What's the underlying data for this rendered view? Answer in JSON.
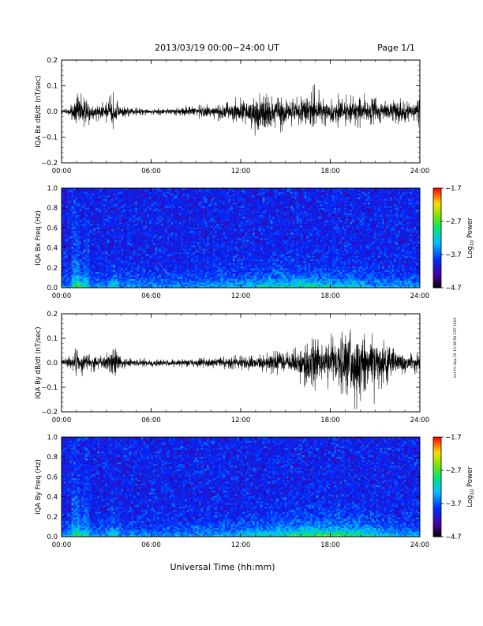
{
  "header": {
    "date_range": "2013/03/19  00:00−24:00 UT",
    "page": "Page 1/1"
  },
  "xaxis": {
    "label": "Universal Time (hh:mm)",
    "ticks": [
      "00:00",
      "06:00",
      "12:00",
      "18:00",
      "24:00"
    ],
    "range_hours": [
      0,
      24
    ]
  },
  "side_note": "mrt Fri Sep 20 13:38:56 CST 2019",
  "chart_data": [
    {
      "type": "line",
      "ylabel": "IQA Bx dB/dt (nT/sec)",
      "ylim": [
        -0.2,
        0.2
      ],
      "yticks": [
        "0.2",
        "0.1",
        "0.0",
        "−0.1",
        "−0.2"
      ],
      "x_unit": "hours UT",
      "envelope": {
        "x": [
          0,
          0.5,
          0.8,
          1.0,
          1.2,
          1.5,
          2,
          2.5,
          3,
          3.5,
          4,
          5,
          6,
          7,
          8,
          9,
          10,
          11,
          11.5,
          12,
          12.5,
          13,
          13.5,
          14,
          14.5,
          15,
          15.5,
          16,
          16.5,
          17,
          17.5,
          18,
          18.5,
          19,
          19.5,
          20,
          20.5,
          21,
          21.5,
          22,
          22.5,
          23,
          23.5,
          23.8,
          24
        ],
        "max": [
          0.01,
          0.015,
          0.05,
          0.07,
          0.11,
          0.06,
          0.05,
          0.035,
          0.045,
          0.08,
          0.03,
          0.02,
          0.015,
          0.015,
          0.02,
          0.03,
          0.03,
          0.04,
          0.05,
          0.07,
          0.05,
          0.08,
          0.07,
          0.06,
          0.06,
          0.05,
          0.06,
          0.06,
          0.075,
          0.13,
          0.06,
          0.05,
          0.07,
          0.08,
          0.06,
          0.09,
          0.06,
          0.07,
          0.06,
          0.05,
          0.07,
          0.05,
          0.04,
          0.05,
          0.14
        ],
        "min": [
          -0.02,
          -0.02,
          -0.06,
          -0.13,
          -0.13,
          -0.07,
          -0.05,
          -0.04,
          -0.05,
          -0.09,
          -0.03,
          -0.02,
          -0.015,
          -0.015,
          -0.02,
          -0.03,
          -0.03,
          -0.05,
          -0.06,
          -0.05,
          -0.07,
          -0.14,
          -0.17,
          -0.08,
          -0.07,
          -0.12,
          -0.06,
          -0.06,
          -0.1,
          -0.07,
          -0.06,
          -0.06,
          -0.08,
          -0.07,
          -0.06,
          -0.07,
          -0.06,
          -0.07,
          -0.06,
          -0.05,
          -0.06,
          -0.05,
          -0.04,
          -0.05,
          -0.1
        ]
      }
    },
    {
      "type": "heatmap",
      "ylabel": "IQA Bx Freq (Hz)",
      "ylim": [
        0.0,
        1.0
      ],
      "yticks": [
        "1.0",
        "0.8",
        "0.6",
        "0.4",
        "0.2",
        "0.0"
      ],
      "colorbar": {
        "label": "Log10 Power",
        "label_main": "Log",
        "label_sub": "10",
        "label_rest": " Power",
        "range": [
          -4.7,
          -1.7
        ],
        "ticks": [
          "−1.7",
          "−2.7",
          "−3.7",
          "−4.7"
        ]
      },
      "description_free": true
    },
    {
      "type": "line",
      "ylabel": "IQA By dB/dt (nT/sec)",
      "ylim": [
        -0.2,
        0.2
      ],
      "yticks": [
        "0.2",
        "0.1",
        "0.0",
        "−0.1",
        "−0.2"
      ],
      "x_unit": "hours UT",
      "envelope": {
        "x": [
          0,
          0.5,
          0.8,
          1.0,
          1.2,
          1.5,
          2,
          2.5,
          3,
          3.5,
          4,
          5,
          6,
          7,
          8,
          9,
          10,
          11,
          12,
          13,
          14,
          15,
          15.5,
          16,
          16.5,
          17,
          17.5,
          18,
          18.5,
          19,
          19.5,
          20,
          20.5,
          21,
          21.5,
          22,
          22.5,
          23,
          23.5,
          24
        ],
        "max": [
          0.02,
          0.03,
          0.05,
          0.07,
          0.08,
          0.06,
          0.04,
          0.03,
          0.04,
          0.08,
          0.03,
          0.02,
          0.02,
          0.015,
          0.02,
          0.02,
          0.025,
          0.03,
          0.04,
          0.03,
          0.05,
          0.05,
          0.06,
          0.07,
          0.09,
          0.12,
          0.1,
          0.13,
          0.12,
          0.2,
          0.15,
          0.18,
          0.12,
          0.15,
          0.1,
          0.09,
          0.06,
          0.05,
          0.05,
          0.05
        ],
        "min": [
          -0.02,
          -0.03,
          -0.05,
          -0.09,
          -0.08,
          -0.06,
          -0.04,
          -0.03,
          -0.05,
          -0.11,
          -0.03,
          -0.02,
          -0.02,
          -0.015,
          -0.02,
          -0.02,
          -0.025,
          -0.03,
          -0.04,
          -0.03,
          -0.05,
          -0.05,
          -0.06,
          -0.09,
          -0.12,
          -0.14,
          -0.11,
          -0.13,
          -0.13,
          -0.17,
          -0.19,
          -0.19,
          -0.12,
          -0.18,
          -0.1,
          -0.09,
          -0.06,
          -0.05,
          -0.05,
          -0.05
        ]
      }
    },
    {
      "type": "heatmap",
      "ylabel": "IQA By Freq (Hz)",
      "ylim": [
        0.0,
        1.0
      ],
      "yticks": [
        "1.0",
        "0.8",
        "0.6",
        "0.4",
        "0.2",
        "0.0"
      ],
      "colorbar": {
        "label": "Log10 Power",
        "label_main": "Log",
        "label_sub": "10",
        "label_rest": " Power",
        "range": [
          -4.7,
          -1.7
        ],
        "ticks": [
          "−1.7",
          "−2.7",
          "−3.7",
          "−4.7"
        ]
      }
    }
  ]
}
